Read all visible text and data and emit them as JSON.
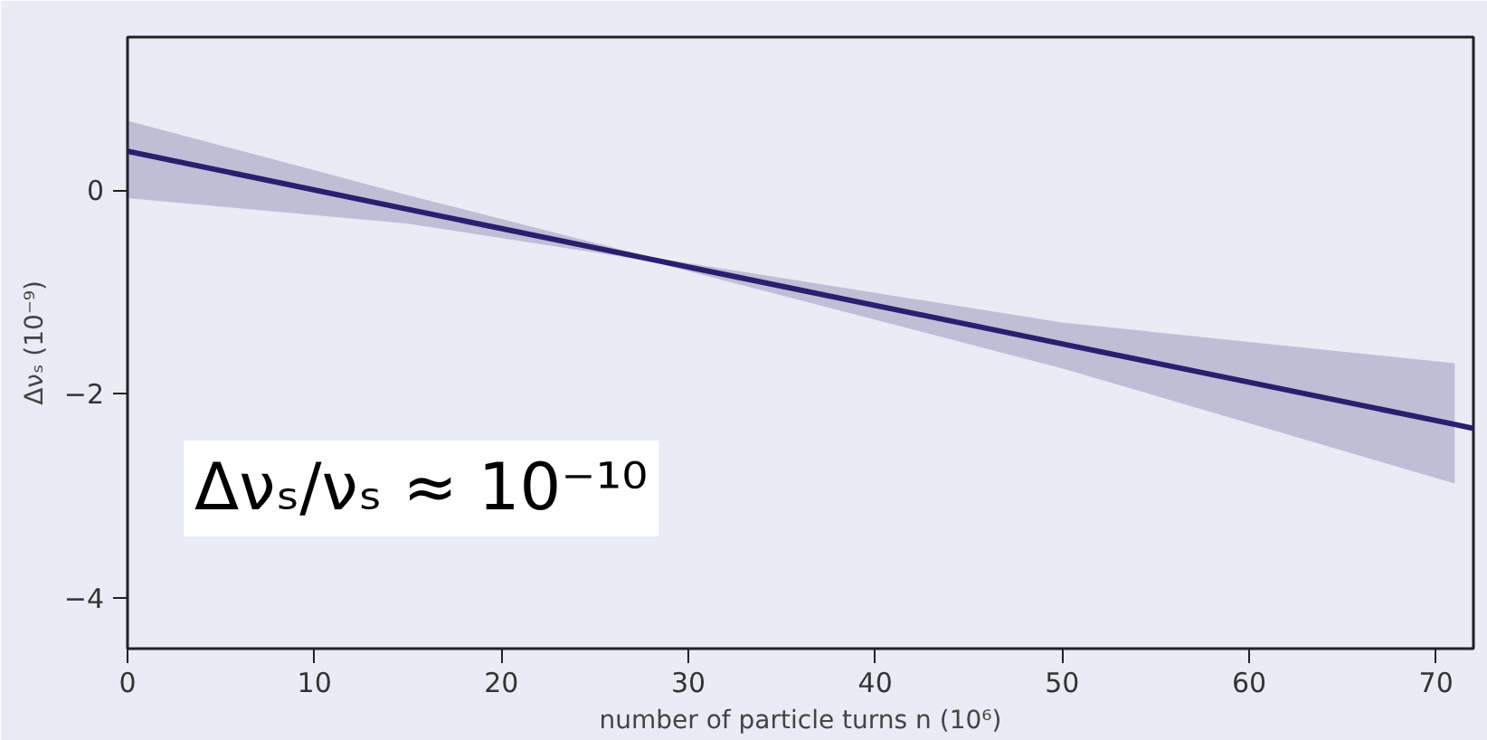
{
  "chart_data": {
    "type": "line",
    "xlabel": "number of particle turns n (10⁶)",
    "ylabel": "Δνₛ (10⁻⁹)",
    "xlim": [
      0,
      72
    ],
    "ylim": [
      -4.5,
      1.5
    ],
    "xticks": [
      0,
      10,
      20,
      30,
      40,
      50,
      60,
      70
    ],
    "yticks": [
      -4,
      -2,
      0
    ],
    "grid": false,
    "x": [
      0,
      15,
      28,
      50,
      71,
      72
    ],
    "series": [
      {
        "color": "#2a1f6e",
        "values": [
          0.38,
          -0.19,
          -0.68,
          -1.51,
          -2.3,
          -2.34
        ],
        "lower": [
          -0.08,
          -0.33,
          -0.7,
          -1.75,
          -2.88,
          null
        ],
        "upper": [
          0.68,
          -0.05,
          -0.66,
          -1.3,
          -1.7,
          null
        ]
      }
    ],
    "annotations": [
      "Δνₛ/νₛ ≈ 10⁻¹⁰"
    ]
  }
}
